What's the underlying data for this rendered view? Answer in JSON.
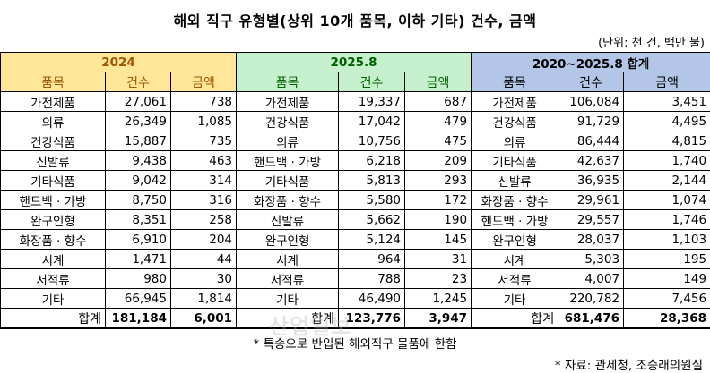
{
  "title": "해외 직구 유형별(상위 10개 품목, 이하 기타) 건수, 금액",
  "unit": "(단위: 천 건, 백만 불)",
  "groups": [
    {
      "label": "2024",
      "color": "#FFE699"
    },
    {
      "label": "2025.8",
      "color": "#C6EFCE"
    },
    {
      "label": "2020~2025.8 합계",
      "color": "#B4C6E7"
    }
  ],
  "columns": {
    "item": "품목",
    "count": "건수",
    "amount": "금액"
  },
  "rows": [
    [
      {
        "item": "가전제품",
        "count": "27,061",
        "amount": "738"
      },
      {
        "item": "가전제품",
        "count": "19,337",
        "amount": "687"
      },
      {
        "item": "가전제품",
        "count": "106,084",
        "amount": "3,451"
      }
    ],
    [
      {
        "item": "의류",
        "count": "26,349",
        "amount": "1,085"
      },
      {
        "item": "건강식품",
        "count": "17,042",
        "amount": "479"
      },
      {
        "item": "건강식품",
        "count": "91,729",
        "amount": "4,495"
      }
    ],
    [
      {
        "item": "건강식품",
        "count": "15,887",
        "amount": "735"
      },
      {
        "item": "의류",
        "count": "10,756",
        "amount": "475"
      },
      {
        "item": "의류",
        "count": "86,444",
        "amount": "4,815"
      }
    ],
    [
      {
        "item": "신발류",
        "count": "9,438",
        "amount": "463"
      },
      {
        "item": "핸드백 · 가방",
        "count": "6,218",
        "amount": "209"
      },
      {
        "item": "기타식품",
        "count": "42,637",
        "amount": "1,740"
      }
    ],
    [
      {
        "item": "기타식품",
        "count": "9,042",
        "amount": "314"
      },
      {
        "item": "기타식품",
        "count": "5,813",
        "amount": "293"
      },
      {
        "item": "신발류",
        "count": "36,935",
        "amount": "2,144"
      }
    ],
    [
      {
        "item": "핸드백 · 가방",
        "count": "8,750",
        "amount": "316"
      },
      {
        "item": "화장품 · 향수",
        "count": "5,580",
        "amount": "172"
      },
      {
        "item": "화장품 · 향수",
        "count": "29,961",
        "amount": "1,074"
      }
    ],
    [
      {
        "item": "완구인형",
        "count": "8,351",
        "amount": "258"
      },
      {
        "item": "신발류",
        "count": "5,662",
        "amount": "190"
      },
      {
        "item": "핸드백 · 가방",
        "count": "29,557",
        "amount": "1,746"
      }
    ],
    [
      {
        "item": "화장품 · 향수",
        "count": "6,910",
        "amount": "204"
      },
      {
        "item": "완구인형",
        "count": "5,124",
        "amount": "145"
      },
      {
        "item": "완구인형",
        "count": "28,037",
        "amount": "1,103"
      }
    ],
    [
      {
        "item": "시계",
        "count": "1,471",
        "amount": "44"
      },
      {
        "item": "시계",
        "count": "964",
        "amount": "31"
      },
      {
        "item": "시계",
        "count": "5,303",
        "amount": "195"
      }
    ],
    [
      {
        "item": "서적류",
        "count": "980",
        "amount": "30"
      },
      {
        "item": "서적류",
        "count": "788",
        "amount": "23"
      },
      {
        "item": "서적류",
        "count": "4,007",
        "amount": "149"
      }
    ],
    [
      {
        "item": "기타",
        "count": "66,945",
        "amount": "1,814"
      },
      {
        "item": "기타",
        "count": "46,490",
        "amount": "1,245"
      },
      {
        "item": "기타",
        "count": "220,782",
        "amount": "7,456"
      }
    ]
  ],
  "totals": [
    {
      "label": "합계",
      "count": "181,184",
      "amount": "6,001"
    },
    {
      "label": "합계",
      "count": "123,776",
      "amount": "3,947"
    },
    {
      "label": "합계",
      "count": "681,476",
      "amount": "28,368"
    }
  ],
  "note": "* 특송으로 반입된 해외직구 물품에 한함",
  "source": "* 자료: 관세청, 조승래의원실",
  "watermark": "산업일보"
}
